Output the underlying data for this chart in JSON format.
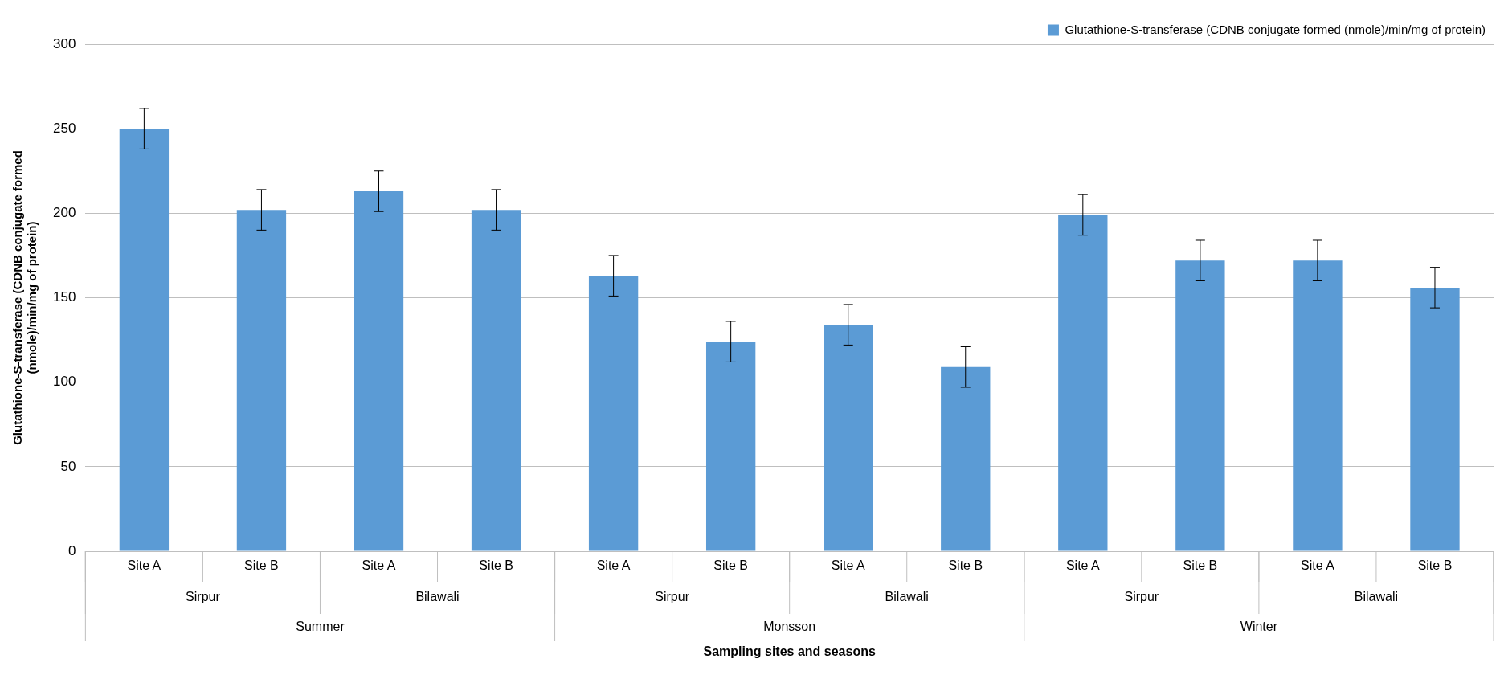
{
  "chart_data": {
    "type": "bar",
    "ylabel": "Glutathione-S-transferase (CDNB conjugate formed (nmole)/min/mg of protein)",
    "categories": [
      "Site A",
      "Site B",
      "Site A",
      "Site B",
      "Site A",
      "Site B",
      "Site A",
      "Site B",
      "Site A",
      "Site B",
      "Site A",
      "Site B"
    ],
    "series": [
      {
        "name": "Glutathione-S-transferase (CDNB conjugate formed (nmole)/min/mg of protein)",
        "color": "#5b9bd5",
        "values": [
          250,
          202,
          213,
          202,
          163,
          124,
          134,
          109,
          199,
          172,
          172,
          156
        ],
        "errors": [
          12,
          12,
          12,
          12,
          12,
          12,
          12,
          12,
          12,
          12,
          12,
          12
        ]
      }
    ],
    "annotations": [
      "Sirpur",
      "Bilawali",
      "Sirpur",
      "Bilawali",
      "Sirpur",
      "Bilawali",
      "Summer",
      "Monsson",
      "Winter",
      "Sampling sites and seasons"
    ],
    "ylim": [
      0,
      300
    ],
    "yticks": [
      0,
      50,
      100,
      150,
      200,
      250,
      300
    ],
    "grid": "y",
    "legend": "top right"
  }
}
